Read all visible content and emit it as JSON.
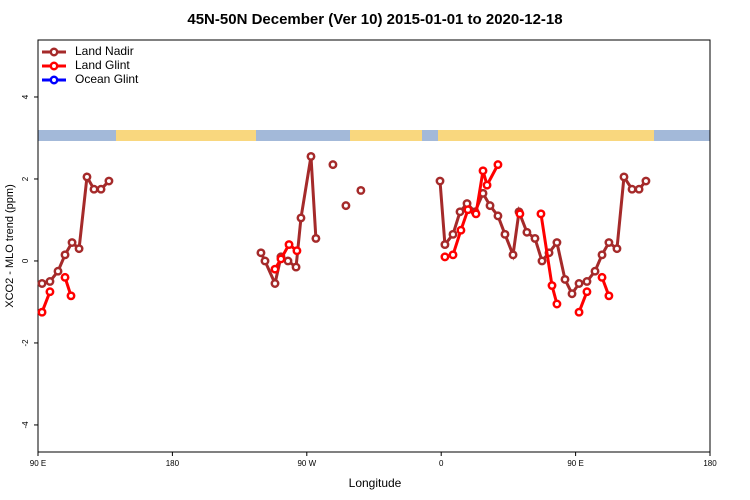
{
  "chart_data": {
    "type": "line",
    "title": "45N-50N December (Ver 10)   2015-01-01 to 2020-12-18",
    "x_label": "Longitude",
    "y_label": "XCO2 - MLO trend (ppm)",
    "xlim": [
      90,
      540
    ],
    "ylim": [
      -4.66,
      5.39
    ],
    "xticks": [
      {
        "value": 90,
        "label": "90 E"
      },
      180,
      {
        "value": 270,
        "label": "90 W"
      },
      {
        "value": 360,
        "label": "0"
      },
      {
        "value": 450,
        "label": "90 E"
      },
      {
        "value": 540,
        "label": "180"
      }
    ],
    "yticks": [
      4,
      2,
      0,
      -2,
      -4
    ],
    "legend": "top-left",
    "series": [
      {
        "name": "Land Nadir",
        "color": "#a52a2a",
        "x": [
          92.7,
          98.0,
          103.4,
          108.1,
          112.8,
          117.5,
          122.8,
          127.5,
          132.2,
          137.5,
          null,
          239.3,
          242.0,
          248.7,
          252.7,
          257.4,
          262.8,
          266.1,
          272.8,
          276.1,
          null,
          287.5,
          null,
          296.2,
          null,
          306.2,
          null,
          359.2,
          362.5,
          367.9,
          372.6,
          377.3,
          382.6,
          388.0,
          392.7,
          398.0,
          402.7,
          408.1,
          412.1,
          417.4,
          422.8,
          427.5,
          432.2,
          437.5,
          442.9,
          447.6,
          452.3,
          457.6,
          463.0,
          467.7,
          472.3,
          477.7,
          482.4,
          487.8,
          492.5,
          497.1
        ],
        "values": [
          -0.55,
          -0.5,
          -0.25,
          0.15,
          0.45,
          0.3,
          2.05,
          1.75,
          1.75,
          1.95,
          null,
          0.2,
          0.0,
          -0.55,
          0.1,
          0.0,
          -0.15,
          1.05,
          2.55,
          0.55,
          null,
          2.35,
          null,
          1.35,
          null,
          1.72,
          null,
          1.95,
          0.4,
          0.65,
          1.2,
          1.4,
          1.2,
          1.65,
          1.35,
          1.1,
          0.65,
          0.15,
          1.2,
          0.7,
          0.55,
          0.0,
          0.2,
          0.45,
          -0.45,
          -0.8,
          -0.55,
          -0.5,
          -0.25,
          0.15,
          0.45,
          0.3,
          2.05,
          1.75,
          1.75,
          1.95
        ]
      },
      {
        "name": "Land Glint",
        "color": "#ff0000",
        "x": [
          92.7,
          98.0,
          null,
          108.1,
          112.1,
          null,
          248.7,
          252.7,
          258.1,
          263.4,
          null,
          362.5,
          367.9,
          373.2,
          377.9,
          383.3,
          388.0,
          390.7,
          398.0,
          null,
          412.7,
          null,
          426.8,
          434.2,
          437.5,
          null,
          452.3,
          457.6,
          null,
          467.7,
          472.3
        ],
        "values": [
          -1.25,
          -0.75,
          null,
          -0.4,
          -0.85,
          null,
          -0.2,
          0.05,
          0.4,
          0.25,
          null,
          0.1,
          0.15,
          0.75,
          1.25,
          1.15,
          2.2,
          1.85,
          2.35,
          null,
          1.15,
          null,
          1.15,
          -0.6,
          -1.05,
          null,
          -1.25,
          -0.75,
          null,
          -0.4,
          -0.85
        ]
      },
      {
        "name": "Ocean Glint",
        "color": "#0000ff",
        "x": [],
        "values": []
      }
    ]
  }
}
